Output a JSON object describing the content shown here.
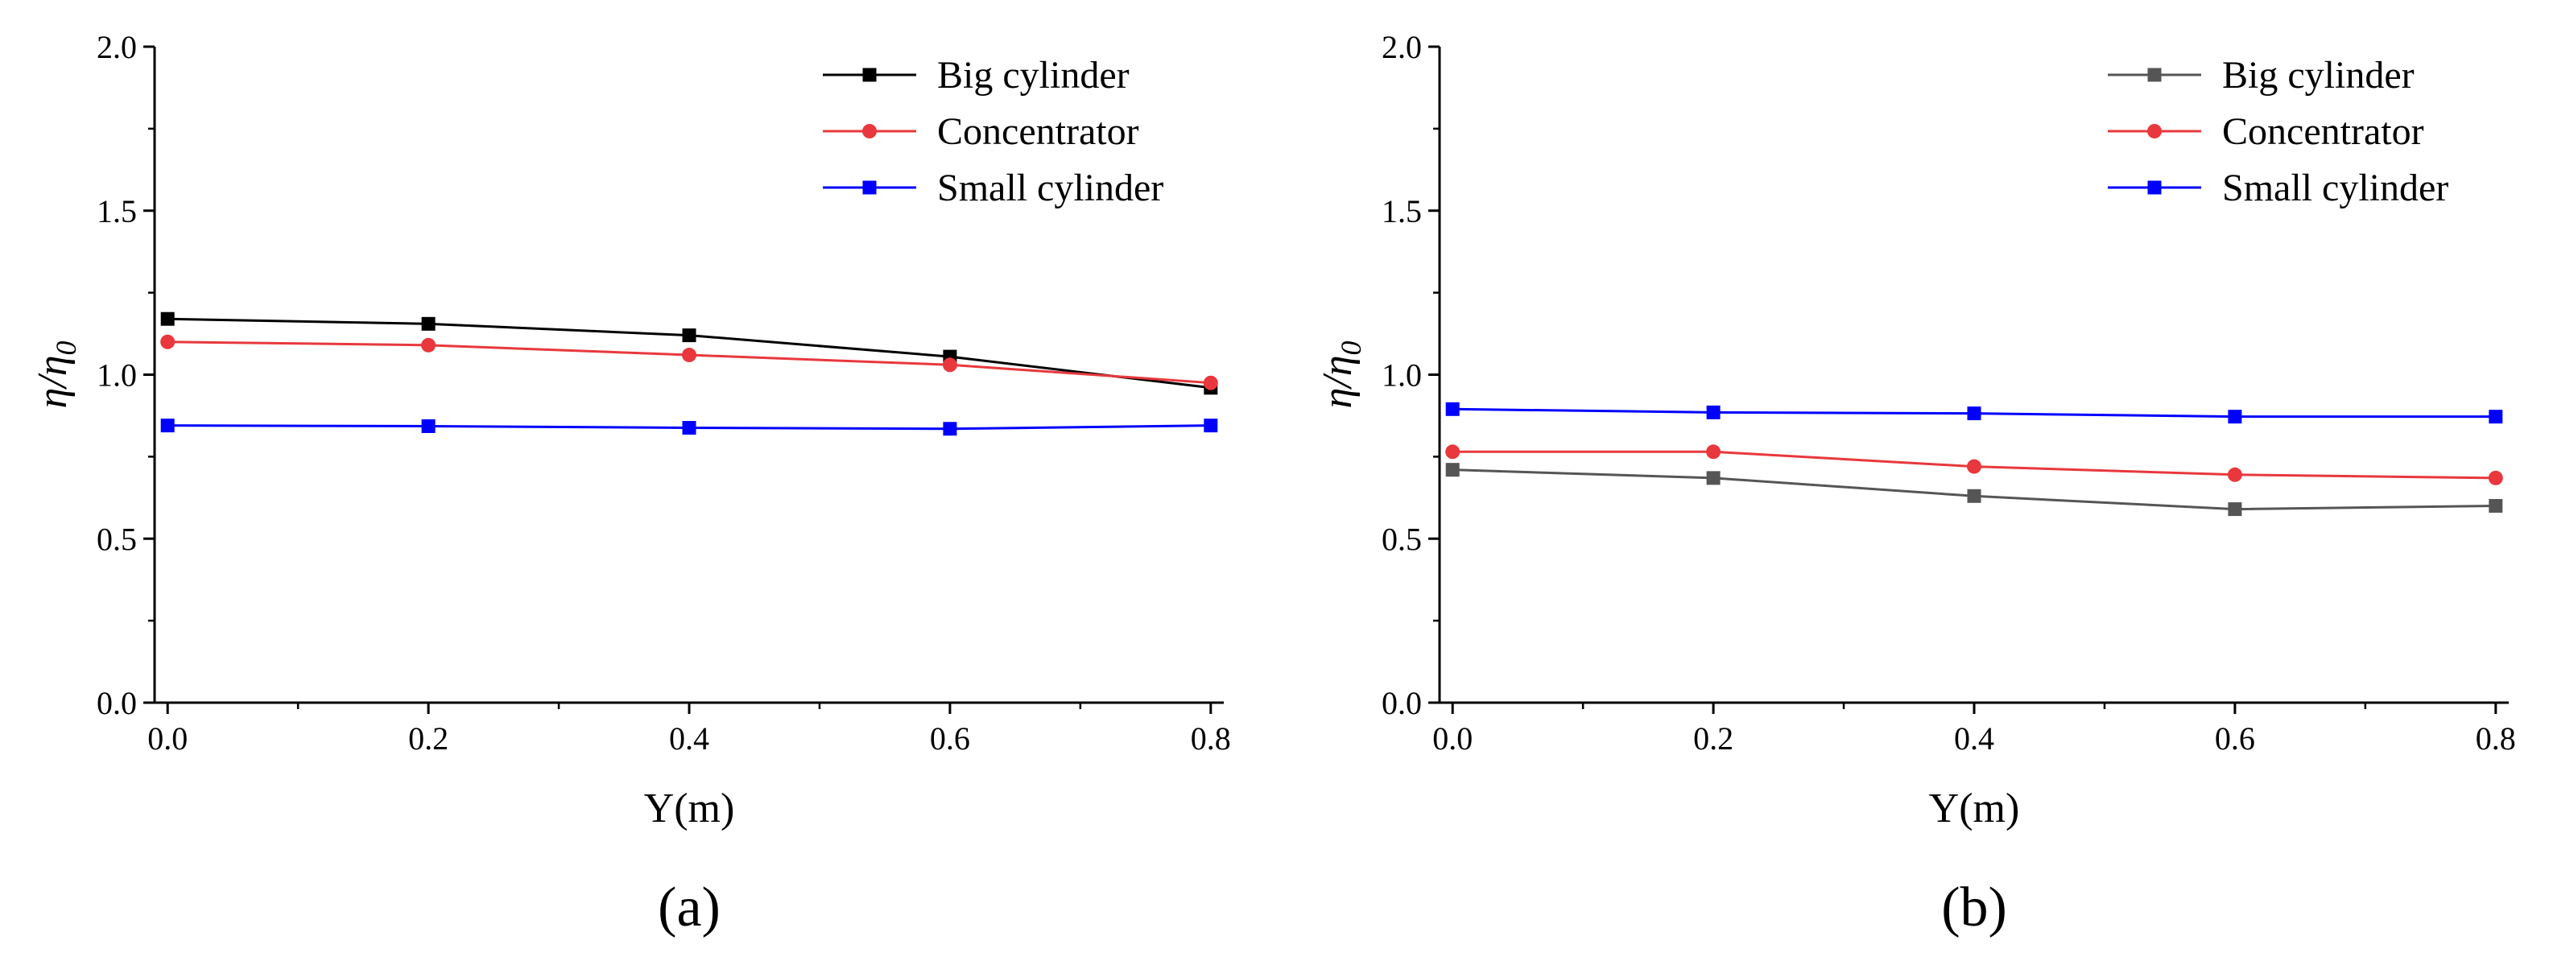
{
  "chart_data": [
    {
      "type": "line",
      "panel_label": "(a)",
      "xlabel": "Y(m)",
      "ylabel": {
        "base": "η/η",
        "subscript": "0"
      },
      "x": [
        0.0,
        0.2,
        0.4,
        0.6,
        0.8
      ],
      "xlim": [
        -0.01,
        0.81
      ],
      "ylim": [
        0.0,
        2.0
      ],
      "xticks": [
        "0.0",
        "0.2",
        "0.4",
        "0.6",
        "0.8"
      ],
      "yticks": [
        "0.0",
        "0.5",
        "1.0",
        "1.5",
        "2.0"
      ],
      "legend_position": "top-right",
      "grid": false,
      "series": [
        {
          "name": "Big cylinder",
          "color": "#000000",
          "marker": "square",
          "values": [
            1.17,
            1.155,
            1.12,
            1.055,
            0.96
          ]
        },
        {
          "name": "Concentrator",
          "color": "#e8383d",
          "marker": "circle",
          "values": [
            1.1,
            1.09,
            1.06,
            1.03,
            0.975
          ]
        },
        {
          "name": "Small cylinder",
          "color": "#0000ff",
          "marker": "square",
          "values": [
            0.845,
            0.843,
            0.838,
            0.835,
            0.845
          ]
        }
      ]
    },
    {
      "type": "line",
      "panel_label": "(b)",
      "xlabel": "Y(m)",
      "ylabel": {
        "base": "η/η",
        "subscript": "0"
      },
      "x": [
        0.0,
        0.2,
        0.4,
        0.6,
        0.8
      ],
      "xlim": [
        -0.01,
        0.81
      ],
      "ylim": [
        0.0,
        2.0
      ],
      "xticks": [
        "0.0",
        "0.2",
        "0.4",
        "0.6",
        "0.8"
      ],
      "yticks": [
        "0.0",
        "0.5",
        "1.0",
        "1.5",
        "2.0"
      ],
      "legend_position": "top-right",
      "grid": false,
      "series": [
        {
          "name": "Big cylinder",
          "color": "#555555",
          "marker": "square",
          "values": [
            0.71,
            0.685,
            0.63,
            0.59,
            0.6
          ]
        },
        {
          "name": "Concentrator",
          "color": "#e8383d",
          "marker": "circle",
          "values": [
            0.765,
            0.765,
            0.72,
            0.695,
            0.685
          ]
        },
        {
          "name": "Small cylinder",
          "color": "#0000ff",
          "marker": "square",
          "values": [
            0.895,
            0.885,
            0.882,
            0.872,
            0.872
          ]
        }
      ]
    }
  ]
}
